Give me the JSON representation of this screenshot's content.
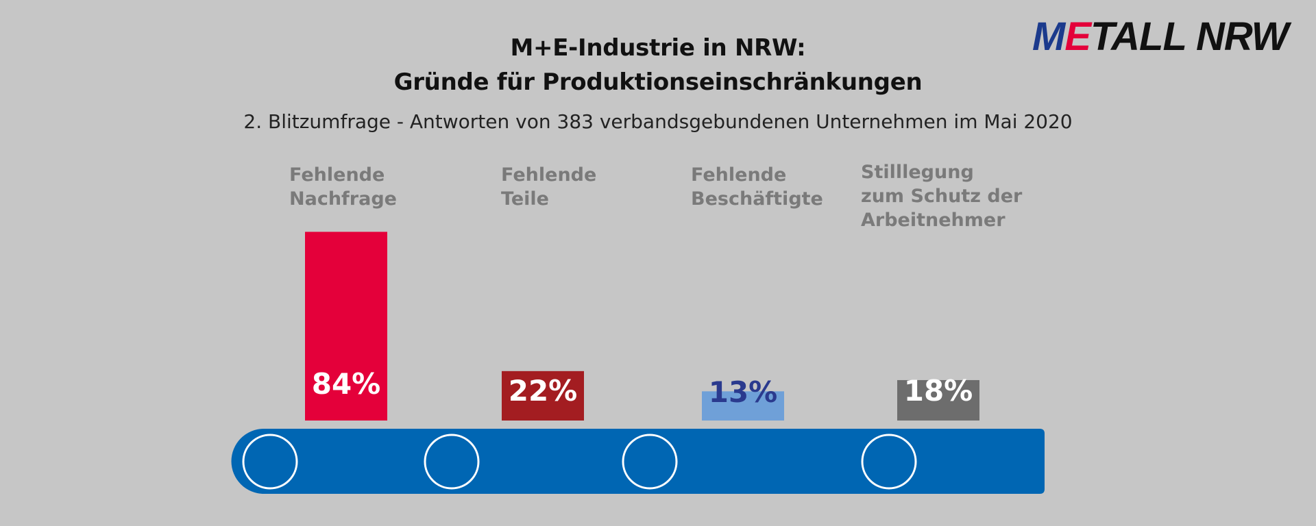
{
  "logo": {
    "part1": "M",
    "part2": "E",
    "part3": "TALL NRW"
  },
  "chart_data": {
    "type": "bar",
    "title": [
      "M+E-Industrie in NRW:",
      "Gründe für Produktionseinschränkungen"
    ],
    "subtitle": "2. Blitzumfrage - Antworten von 383 verbandsgebundenen Unternehmen im Mai 2020",
    "categories": [
      [
        "Fehlende",
        "Nachfrage"
      ],
      [
        "Fehlende",
        "Teile"
      ],
      [
        "Fehlende",
        "Beschäftigte"
      ],
      [
        "Stilllegung",
        "zum Schutz der",
        "Arbeitnehmer"
      ]
    ],
    "values": [
      84,
      22,
      13,
      18
    ],
    "value_labels": [
      "84%",
      "22%",
      "13%",
      "18%"
    ],
    "bar_colors": [
      "#e4003a",
      "#a31d21",
      "#6fa0d8",
      "#6d6d6d"
    ],
    "label_colors": [
      "#ffffff",
      "#ffffff",
      "#2a3a8e",
      "#ffffff"
    ],
    "conveyor_color": "#0066b3",
    "ylim": [
      0,
      100
    ],
    "grid": false
  }
}
